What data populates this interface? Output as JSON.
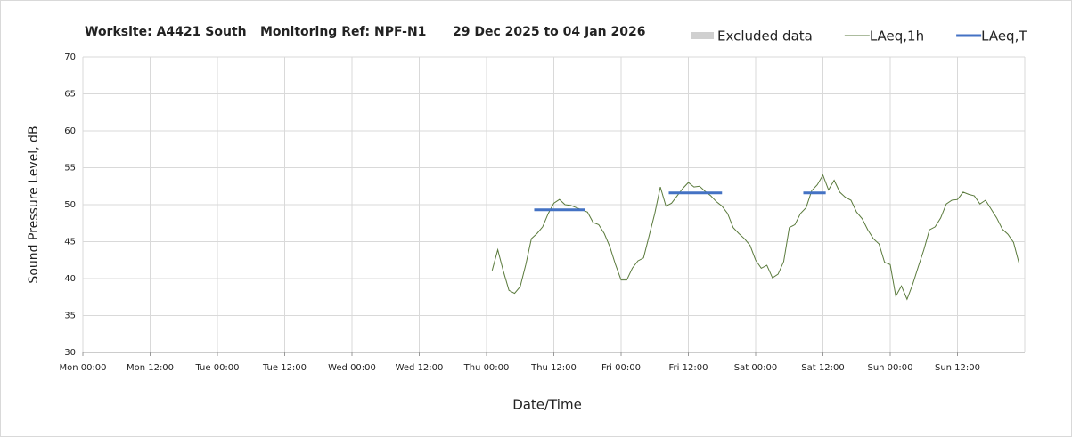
{
  "chart_data": {
    "type": "line",
    "title": [
      "Worksite: A4421 South",
      "Monitoring Ref: NPF-N1",
      "29 Dec 2025 to 04 Jan 2026"
    ],
    "x_label": "Date/Time",
    "y_label": "Sound Pressure Level, dB",
    "xlim": [
      0,
      168
    ],
    "xticks": [
      {
        "value": 0,
        "label": "Mon 00:00"
      },
      {
        "value": 12,
        "label": "Mon 12:00"
      },
      {
        "value": 24,
        "label": "Tue 00:00"
      },
      {
        "value": 36,
        "label": "Tue 12:00"
      },
      {
        "value": 48,
        "label": "Wed 00:00"
      },
      {
        "value": 60,
        "label": "Wed 12:00"
      },
      {
        "value": 72,
        "label": "Thu 00:00"
      },
      {
        "value": 84,
        "label": "Thu 12:00"
      },
      {
        "value": 96,
        "label": "Fri 00:00"
      },
      {
        "value": 108,
        "label": "Fri 12:00"
      },
      {
        "value": 120,
        "label": "Sat 00:00"
      },
      {
        "value": 132,
        "label": "Sat 12:00"
      },
      {
        "value": 144,
        "label": "Sun 00:00"
      },
      {
        "value": 156,
        "label": "Sun 12:00"
      }
    ],
    "ylim": [
      30,
      70
    ],
    "yticks": [
      30,
      35,
      40,
      45,
      50,
      55,
      60,
      65,
      70
    ],
    "grid": true,
    "legend": "top-right",
    "series": [
      {
        "name": "Excluded data",
        "color": "#d0d0d0",
        "style": "area",
        "x": [],
        "values": []
      },
      {
        "name": "LAeq,1h",
        "color": "#5a7a3c",
        "style": "line",
        "x": [
          73,
          74,
          75,
          76,
          77,
          78,
          79,
          80,
          81,
          82,
          83,
          84,
          85,
          86,
          87,
          88,
          89,
          90,
          91,
          92,
          93,
          94,
          95,
          96,
          97,
          98,
          99,
          100,
          101,
          102,
          103,
          104,
          105,
          106,
          107,
          108,
          109,
          110,
          111,
          112,
          113,
          114,
          115,
          116,
          117,
          118,
          119,
          120,
          121,
          122,
          123,
          124,
          125,
          126,
          127,
          128,
          129,
          130,
          131,
          132,
          133,
          134,
          135,
          136,
          137,
          138,
          139,
          140,
          141,
          142,
          143,
          144,
          145,
          146,
          147,
          148,
          149,
          150,
          151,
          152,
          153,
          154,
          155,
          156,
          157,
          158,
          159,
          160,
          161,
          162,
          163,
          164,
          165,
          166,
          167
        ],
        "values": [
          41.1,
          43.9,
          41,
          38.4,
          38,
          38.9,
          41.9,
          45.4,
          46.1,
          47,
          48.8,
          50.2,
          50.7,
          50,
          49.9,
          49.6,
          49.3,
          49,
          47.6,
          47.3,
          46.1,
          44.3,
          41.9,
          39.8,
          39.8,
          41.4,
          42.4,
          42.8,
          45.8,
          48.8,
          52.4,
          49.8,
          50.2,
          51.2,
          52.2,
          53,
          52.4,
          52.5,
          51.8,
          51.2,
          50.4,
          49.8,
          48.8,
          46.9,
          46.1,
          45.4,
          44.5,
          42.5,
          41.4,
          41.8,
          40.1,
          40.6,
          42.3,
          46.9,
          47.3,
          48.8,
          49.6,
          51.9,
          52.7,
          54,
          52,
          53.3,
          51.7,
          51,
          50.6,
          49,
          48.1,
          46.6,
          45.4,
          44.7,
          42.2,
          41.9,
          37.6,
          39,
          37.2,
          39.2,
          41.6,
          43.9,
          46.6,
          47,
          48.2,
          50.1,
          50.6,
          50.7,
          51.7,
          51.4,
          51.2,
          50.1,
          50.6,
          49.4,
          48.2,
          46.7,
          46,
          44.9,
          42
        ]
      },
      {
        "name": "LAeq,T",
        "color": "#4472c4",
        "style": "thick",
        "x": [
          80.5,
          89.5,
          97,
          104.5,
          114,
          121,
          128.5,
          132.5
        ],
        "values": [
          49.3,
          49.3,
          null,
          51.6,
          51.6,
          null,
          51.6,
          51.6
        ]
      }
    ]
  }
}
